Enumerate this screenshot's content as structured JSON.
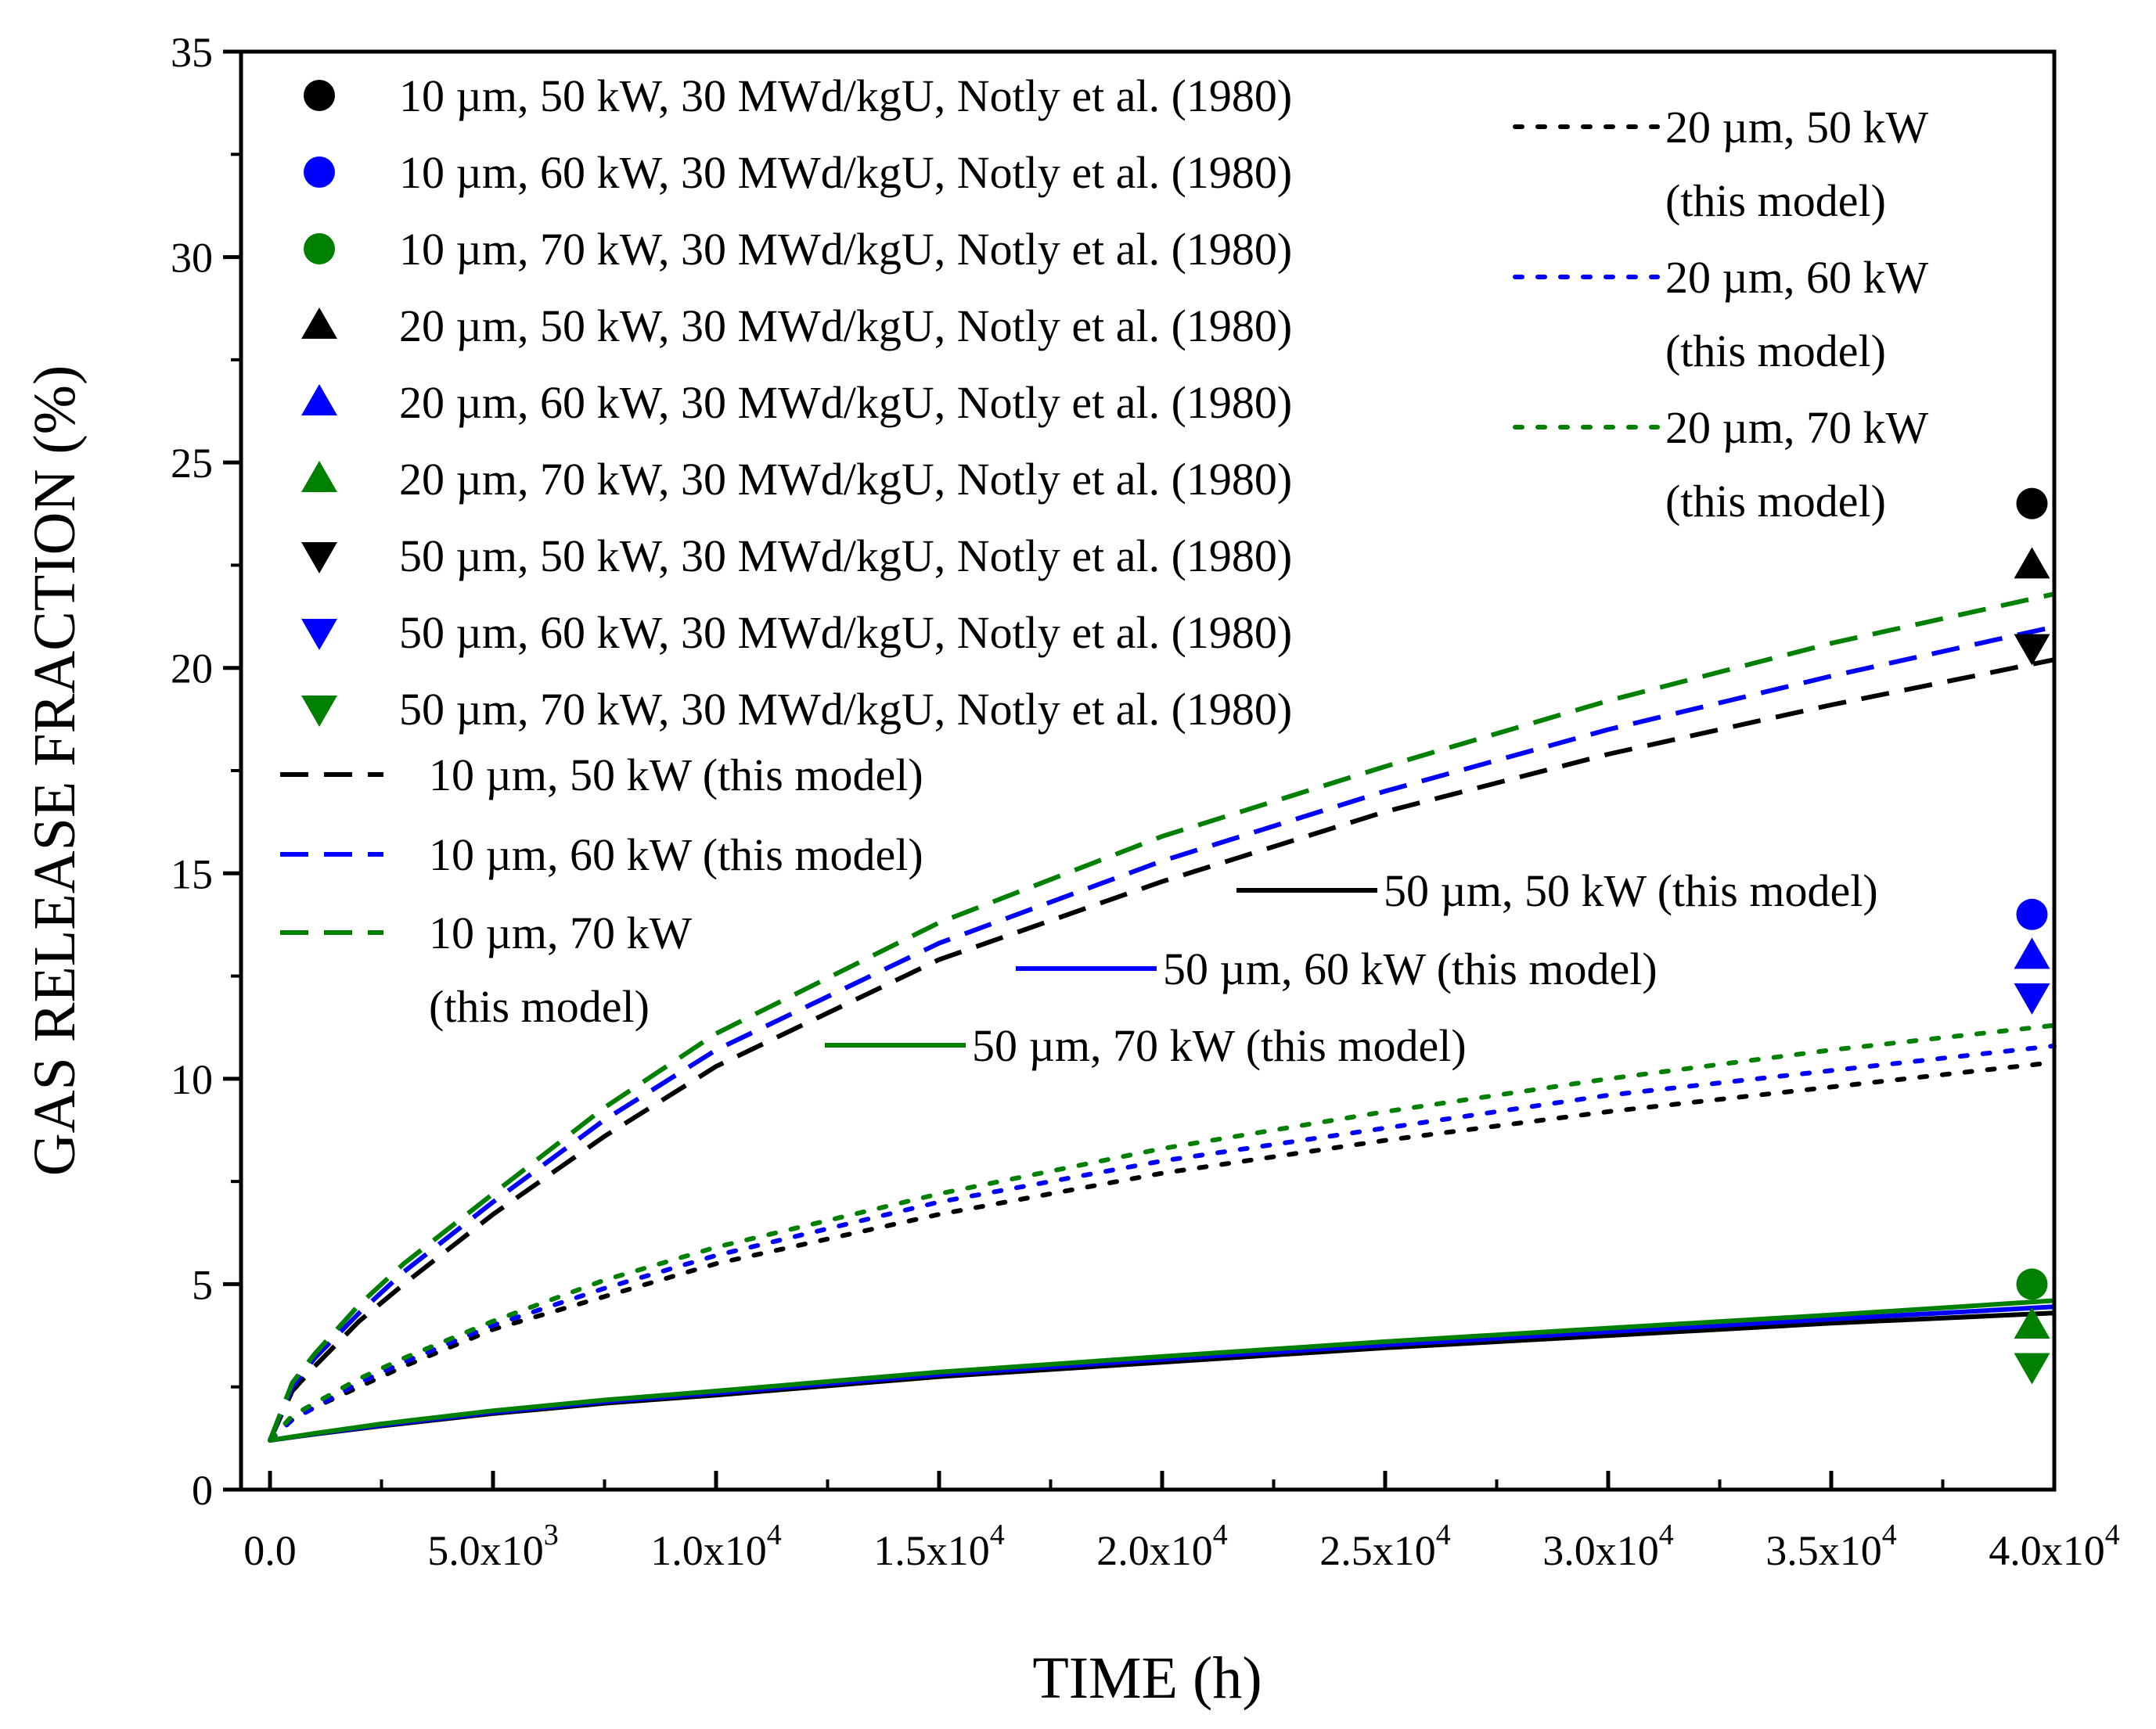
{
  "chart_data": {
    "type": "scatter",
    "xlabel": "TIME (h)",
    "ylabel": "GAS RELEASE FRACTION (%)",
    "xlim": [
      0,
      40000
    ],
    "ylim": [
      0,
      35
    ],
    "x_ticks": [
      {
        "value": 0,
        "label": "0.0",
        "exp": ""
      },
      {
        "value": 5000,
        "label": "5.0x10",
        "exp": "3"
      },
      {
        "value": 10000,
        "label": "1.0x10",
        "exp": "4"
      },
      {
        "value": 15000,
        "label": "1.5x10",
        "exp": "4"
      },
      {
        "value": 20000,
        "label": "2.0x10",
        "exp": "4"
      },
      {
        "value": 25000,
        "label": "2.5x10",
        "exp": "4"
      },
      {
        "value": 30000,
        "label": "3.0x10",
        "exp": "4"
      },
      {
        "value": 35000,
        "label": "3.5x10",
        "exp": "4"
      },
      {
        "value": 40000,
        "label": "4.0x10",
        "exp": "4"
      }
    ],
    "y_ticks": [
      {
        "value": 0,
        "label": "0"
      },
      {
        "value": 5,
        "label": "5"
      },
      {
        "value": 10,
        "label": "10"
      },
      {
        "value": 15,
        "label": "15"
      },
      {
        "value": 20,
        "label": "20"
      },
      {
        "value": 25,
        "label": "25"
      },
      {
        "value": 30,
        "label": "30"
      },
      {
        "value": 35,
        "label": "35"
      }
    ],
    "grid": false,
    "colors": {
      "black": "#000000",
      "blue": "#0000ff",
      "green": "#008000"
    },
    "points": [
      {
        "name": "10 µm, 50 kW, 30 MWd/kgU, Notly et al. (1980)",
        "marker": "circle",
        "color": "#000000",
        "x": 39500,
        "y": 24.0
      },
      {
        "name": "10 µm, 60 kW, 30 MWd/kgU, Notly et al. (1980)",
        "marker": "circle",
        "color": "#0000ff",
        "x": 39500,
        "y": 14.0
      },
      {
        "name": "10 µm, 70 kW, 30 MWd/kgU, Notly et al. (1980)",
        "marker": "circle",
        "color": "#008000",
        "x": 39500,
        "y": 5.0
      },
      {
        "name": "20 µm, 50 kW, 30 MWd/kgU, Notly et al. (1980)",
        "marker": "triangle-up",
        "color": "#000000",
        "x": 39500,
        "y": 22.5
      },
      {
        "name": "20 µm, 60 kW, 30 MWd/kgU, Notly et al. (1980)",
        "marker": "triangle-up",
        "color": "#0000ff",
        "x": 39500,
        "y": 13.0
      },
      {
        "name": "20 µm, 70 kW, 30 MWd/kgU, Notly et al. (1980)",
        "marker": "triangle-up",
        "color": "#008000",
        "x": 39500,
        "y": 4.0
      },
      {
        "name": "50 µm, 50 kW, 30 MWd/kgU, Notly et al. (1980)",
        "marker": "triangle-down",
        "color": "#000000",
        "x": 39500,
        "y": 20.5
      },
      {
        "name": "50 µm, 60 kW, 30 MWd/kgU, Notly et al. (1980)",
        "marker": "triangle-down",
        "color": "#0000ff",
        "x": 39500,
        "y": 12.0
      },
      {
        "name": "50 µm, 70 kW, 30 MWd/kgU, Notly et al. (1980)",
        "marker": "triangle-down",
        "color": "#008000",
        "x": 39500,
        "y": 3.0
      }
    ],
    "curves": [
      {
        "name": "10 µm, 50 kW (this model)",
        "style": "dashed",
        "color": "#000000",
        "x": [
          0,
          500,
          1000,
          2000,
          3000,
          5000,
          7500,
          10000,
          15000,
          20000,
          25000,
          30000,
          35000,
          40000
        ],
        "y": [
          1.2,
          2.4,
          3.0,
          4.1,
          5.0,
          6.7,
          8.6,
          10.3,
          12.9,
          14.8,
          16.5,
          17.9,
          19.1,
          20.2
        ]
      },
      {
        "name": "10 µm, 60 kW (this model)",
        "style": "dashed",
        "color": "#0000ff",
        "x": [
          0,
          500,
          1000,
          2000,
          3000,
          5000,
          7500,
          10000,
          15000,
          20000,
          25000,
          30000,
          35000,
          40000
        ],
        "y": [
          1.2,
          2.5,
          3.2,
          4.3,
          5.3,
          7.0,
          9.0,
          10.7,
          13.3,
          15.3,
          17.0,
          18.5,
          19.8,
          21.0
        ]
      },
      {
        "name": "10 µm, 70 kW (this model)",
        "style": "dashed",
        "color": "#008000",
        "x": [
          0,
          500,
          1000,
          2000,
          3000,
          5000,
          7500,
          10000,
          15000,
          20000,
          25000,
          30000,
          35000,
          40000
        ],
        "y": [
          1.2,
          2.6,
          3.3,
          4.5,
          5.5,
          7.2,
          9.3,
          11.1,
          13.8,
          15.9,
          17.6,
          19.2,
          20.6,
          21.8
        ]
      },
      {
        "name": "20 µm, 50 kW (this model)",
        "style": "dotted",
        "color": "#000000",
        "x": [
          0,
          500,
          1000,
          2000,
          3000,
          5000,
          7500,
          10000,
          15000,
          20000,
          25000,
          30000,
          35000,
          40000
        ],
        "y": [
          1.2,
          1.7,
          2.0,
          2.5,
          3.0,
          3.9,
          4.7,
          5.5,
          6.7,
          7.7,
          8.5,
          9.2,
          9.8,
          10.4
        ]
      },
      {
        "name": "20 µm, 60 kW (this model)",
        "style": "dotted",
        "color": "#0000ff",
        "x": [
          0,
          500,
          1000,
          2000,
          3000,
          5000,
          7500,
          10000,
          15000,
          20000,
          25000,
          30000,
          35000,
          40000
        ],
        "y": [
          1.2,
          1.7,
          2.0,
          2.6,
          3.1,
          4.0,
          4.9,
          5.7,
          7.0,
          8.0,
          8.8,
          9.6,
          10.2,
          10.8
        ]
      },
      {
        "name": "20 µm, 70 kW (this model)",
        "style": "dotted",
        "color": "#008000",
        "x": [
          0,
          500,
          1000,
          2000,
          3000,
          5000,
          7500,
          10000,
          15000,
          20000,
          25000,
          30000,
          35000,
          40000
        ],
        "y": [
          1.2,
          1.8,
          2.1,
          2.7,
          3.2,
          4.1,
          5.1,
          5.9,
          7.2,
          8.3,
          9.2,
          10.0,
          10.7,
          11.3
        ]
      },
      {
        "name": "50 µm, 50 kW (this model)",
        "style": "solid",
        "color": "#000000",
        "x": [
          0,
          1000,
          2500,
          5000,
          7500,
          10000,
          15000,
          20000,
          25000,
          30000,
          35000,
          40000
        ],
        "y": [
          1.2,
          1.35,
          1.55,
          1.85,
          2.1,
          2.3,
          2.75,
          3.1,
          3.45,
          3.75,
          4.05,
          4.3
        ]
      },
      {
        "name": "50 µm, 60 kW (this model)",
        "style": "solid",
        "color": "#0000ff",
        "x": [
          0,
          1000,
          2500,
          5000,
          7500,
          10000,
          15000,
          20000,
          25000,
          30000,
          35000,
          40000
        ],
        "y": [
          1.2,
          1.36,
          1.57,
          1.88,
          2.14,
          2.35,
          2.8,
          3.17,
          3.52,
          3.84,
          4.15,
          4.45
        ]
      },
      {
        "name": "50 µm, 70 kW (this model)",
        "style": "solid",
        "color": "#008000",
        "x": [
          0,
          1000,
          2500,
          5000,
          7500,
          10000,
          15000,
          20000,
          25000,
          30000,
          35000,
          40000
        ],
        "y": [
          1.2,
          1.37,
          1.6,
          1.92,
          2.18,
          2.4,
          2.86,
          3.24,
          3.6,
          3.93,
          4.25,
          4.6
        ]
      }
    ],
    "legend": {
      "points": [
        "10 µm, 50 kW, 30 MWd/kgU, Notly et al. (1980)",
        "10 µm, 60 kW, 30 MWd/kgU, Notly et al. (1980)",
        "10 µm, 70 kW, 30 MWd/kgU, Notly et al. (1980)",
        "20 µm, 50 kW, 30 MWd/kgU, Notly et al. (1980)",
        "20 µm, 60 kW, 30 MWd/kgU, Notly et al. (1980)",
        "20 µm, 70 kW, 30 MWd/kgU, Notly et al. (1980)",
        "50 µm, 50 kW, 30 MWd/kgU, Notly et al. (1980)",
        "50 µm, 60 kW, 30 MWd/kgU, Notly et al. (1980)",
        "50 µm, 70 kW, 30 MWd/kgU, Notly et al. (1980)"
      ],
      "dashed": [
        {
          "line1": "10 µm, 50 kW (this model)",
          "line2": ""
        },
        {
          "line1": "10 µm, 60 kW (this model)",
          "line2": ""
        },
        {
          "line1": "10 µm, 70 kW",
          "line2": "(this model)"
        }
      ],
      "dotted": [
        {
          "line1": "20 µm, 50 kW",
          "line2": "(this model)"
        },
        {
          "line1": "20 µm, 60 kW",
          "line2": "(this model)"
        },
        {
          "line1": "20 µm, 70 kW",
          "line2": "(this model)"
        }
      ],
      "solid": [
        "50 µm, 50 kW (this model)",
        "50 µm, 60 kW (this model)",
        "50 µm, 70 kW (this model)"
      ]
    }
  }
}
